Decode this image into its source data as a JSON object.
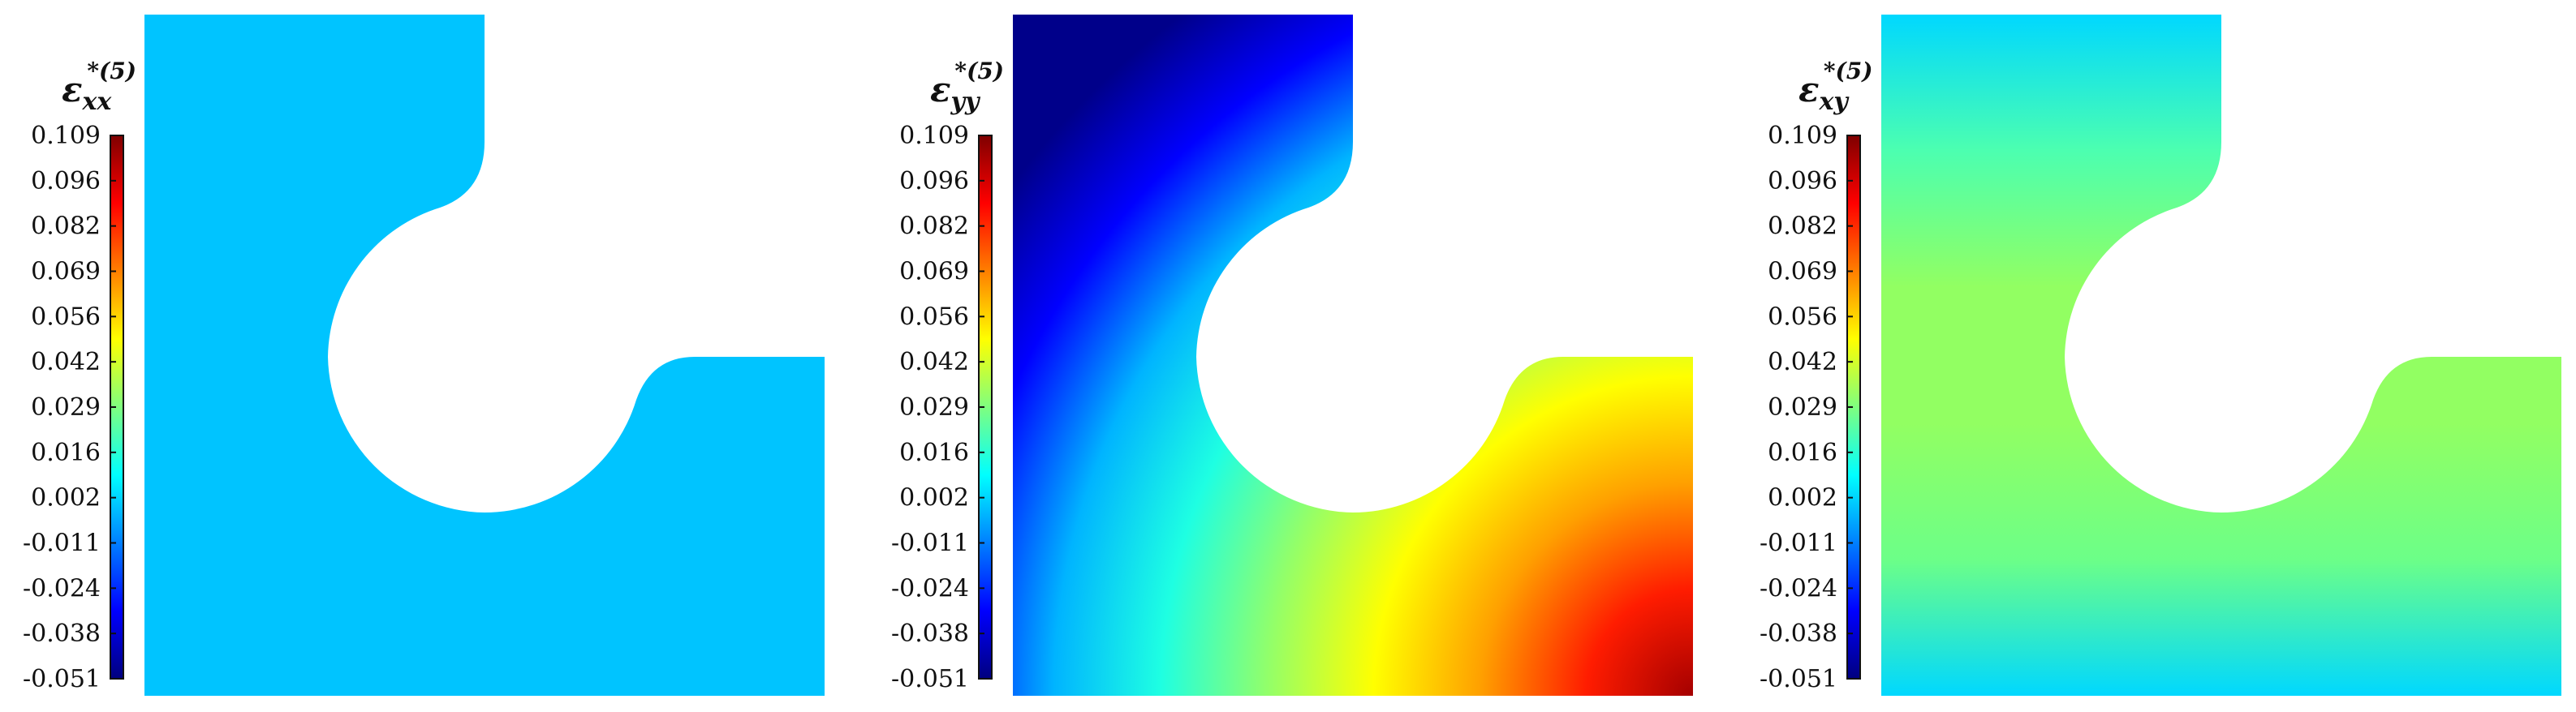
{
  "colormap": {
    "name": "jet",
    "stops": [
      "#00007f",
      "#0000ff",
      "#007fff",
      "#00ffff",
      "#7fff7f",
      "#ffff00",
      "#ff7f00",
      "#ff0000",
      "#7f0000"
    ]
  },
  "panels": [
    {
      "id": "exx",
      "symbol": "ε",
      "subscript": "xx",
      "superscript": "*(5)",
      "ticks": [
        "0.109",
        "0.096",
        "0.082",
        "0.069",
        "0.056",
        "0.042",
        "0.029",
        "0.016",
        "0.002",
        "-0.011",
        "-0.024",
        "-0.038",
        "-0.051"
      ],
      "fill": {
        "type": "uniform",
        "color": "#00c4ff"
      }
    },
    {
      "id": "eyy",
      "symbol": "ε",
      "subscript": "yy",
      "superscript": "*(5)",
      "ticks": [
        "0.109",
        "0.096",
        "0.082",
        "0.069",
        "0.056",
        "0.042",
        "0.029",
        "0.016",
        "0.002",
        "-0.011",
        "-0.024",
        "-0.038",
        "-0.051"
      ],
      "fill": {
        "type": "radial",
        "center": "bottom-right",
        "stops": [
          "#a40000",
          "#ff1c00",
          "#ffa000",
          "#ffff00",
          "#92ff6a",
          "#1effe2",
          "#00b4ff",
          "#0000ff",
          "#00008a"
        ]
      }
    },
    {
      "id": "exy",
      "symbol": "ε",
      "subscript": "xy",
      "superscript": "*(5)",
      "ticks": [
        "0.109",
        "0.096",
        "0.082",
        "0.069",
        "0.056",
        "0.042",
        "0.029",
        "0.016",
        "0.002",
        "-0.011",
        "-0.024",
        "-0.038",
        "-0.051"
      ],
      "fill": {
        "type": "vertical",
        "stops": [
          "#00d8ff",
          "#4cffb0",
          "#92ff62",
          "#92ff62",
          "#6cff88",
          "#00d8ff"
        ]
      }
    }
  ]
}
